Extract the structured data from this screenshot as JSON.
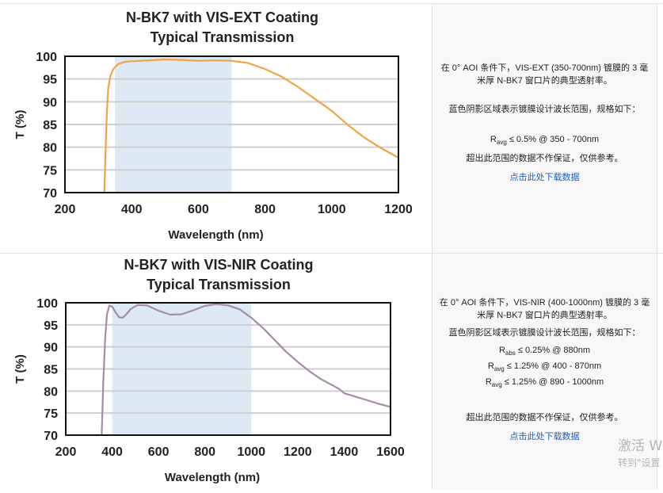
{
  "chart_data": [
    {
      "type": "line",
      "title": "N-BK7 with VIS-EXT Coating",
      "subtitle": "Typical Transmission",
      "xlabel": "Wavelength (nm)",
      "ylabel": "T (%)",
      "xlim": [
        200,
        1200
      ],
      "ylim": [
        70,
        100
      ],
      "xticks": [
        200,
        400,
        600,
        800,
        1000,
        1200
      ],
      "yticks": [
        70,
        75,
        80,
        85,
        90,
        95,
        100
      ],
      "grid": "horizontal",
      "shaded_region": [
        350,
        700
      ],
      "shade_color": "#dde9f5",
      "line_color": "#f0a444",
      "x": [
        318,
        322,
        326,
        330,
        336,
        345,
        360,
        380,
        400,
        450,
        500,
        550,
        600,
        650,
        700,
        750,
        800,
        850,
        900,
        950,
        1000,
        1050,
        1100,
        1150,
        1200
      ],
      "y": [
        70,
        80,
        88,
        93,
        95.6,
        97.2,
        98.3,
        98.8,
        98.9,
        99.1,
        99.3,
        99.2,
        99.0,
        99.1,
        99.0,
        98.5,
        97.2,
        95.5,
        93.2,
        90.6,
        88.0,
        84.8,
        82.0,
        79.7,
        77.7
      ]
    },
    {
      "type": "line",
      "title": "N-BK7 with VIS-NIR Coating",
      "subtitle": "Typical Transmission",
      "xlabel": "Wavelength (nm)",
      "ylabel": "T (%)",
      "xlim": [
        200,
        1600
      ],
      "ylim": [
        70,
        100
      ],
      "xticks": [
        200,
        400,
        600,
        800,
        1000,
        1200,
        1400,
        1600
      ],
      "yticks": [
        70,
        75,
        80,
        85,
        90,
        95,
        100
      ],
      "grid": "horizontal",
      "shaded_region": [
        400,
        1000
      ],
      "shade_color": "#dde9f5",
      "line_color": "#a58ca8",
      "x": [
        355,
        362,
        370,
        378,
        388,
        400,
        415,
        430,
        445,
        460,
        480,
        510,
        550,
        600,
        650,
        700,
        750,
        800,
        850,
        900,
        950,
        1000,
        1050,
        1100,
        1150,
        1200,
        1250,
        1300,
        1350,
        1380,
        1400,
        1450,
        1500,
        1550,
        1600
      ],
      "y": [
        70,
        82,
        92,
        97.5,
        99.4,
        99.1,
        97.8,
        96.7,
        96.6,
        97.3,
        98.6,
        99.5,
        99.4,
        98.2,
        97.3,
        97.4,
        98.3,
        99.3,
        99.7,
        99.4,
        98.5,
        96.6,
        94.3,
        91.6,
        88.9,
        86.6,
        84.5,
        82.7,
        81.3,
        80.4,
        79.5,
        78.7,
        77.9,
        77.1,
        76.4
      ]
    }
  ],
  "panels": [
    {
      "desc_line1": "在 0° AOI 条件下，VIS-EXT (350-700nm) 镀膜的 3 毫米厚 N-BK7 窗口片的典型透射率。",
      "desc_line2": "蓝色阴影区域表示镀膜设计波长范围，规格如下：",
      "specs": [
        {
          "symbol": "R",
          "sub": "avg",
          "text": "≤ 0.5% @ 350 - 700nm"
        }
      ],
      "disclaimer": "超出此范围的数据不作保证，仅供参考。",
      "download_link": "点击此处下载数据"
    },
    {
      "desc_line1": "在 0° AOI 条件下，VIS-NIR (400-1000nm) 镀膜的 3 毫米厚 N-BK7 窗口片的典型透射率。",
      "desc_line2": "蓝色阴影区域表示镀膜设计波长范围，规格如下：",
      "specs": [
        {
          "symbol": "R",
          "sub": "abs",
          "text": "≤ 0.25% @ 880nm"
        },
        {
          "symbol": "R",
          "sub": "avg",
          "text": "≤ 1.25% @ 400 - 870nm"
        },
        {
          "symbol": "R",
          "sub": "avg",
          "text": "≤ 1.25% @ 890 - 1000nm"
        }
      ],
      "disclaimer": "超出此范围的数据不作保证，仅供参考。",
      "download_link": "点击此处下载数据"
    }
  ],
  "watermark": {
    "line1": "激活 W",
    "line2": "转到\"设置"
  }
}
